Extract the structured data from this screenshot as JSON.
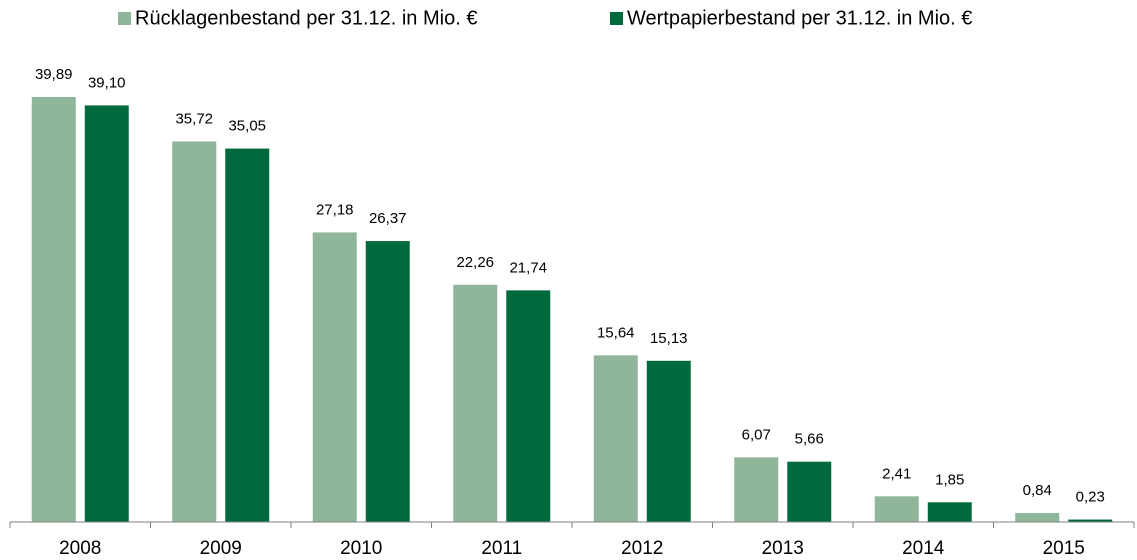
{
  "chart_data": {
    "type": "bar",
    "categories": [
      "2008",
      "2009",
      "2010",
      "2011",
      "2012",
      "2013",
      "2014",
      "2015"
    ],
    "series": [
      {
        "name": "Rücklagenbestand per 31.12. in Mio. €",
        "color": "#8fb59a",
        "values": [
          39.89,
          35.72,
          27.18,
          22.26,
          15.64,
          6.07,
          2.41,
          0.84
        ],
        "value_labels": [
          "39,89",
          "35,72",
          "27,18",
          "22,26",
          "15,64",
          "6,07",
          "2,41",
          "0,84"
        ]
      },
      {
        "name": "Wertpapierbestand per 31.12. in Mio. €",
        "color": "#006a3d",
        "values": [
          39.1,
          35.05,
          26.37,
          21.74,
          15.13,
          5.66,
          1.85,
          0.23
        ],
        "value_labels": [
          "39,10",
          "35,05",
          "26,37",
          "21,74",
          "15,13",
          "5,66",
          "1,85",
          "0,23"
        ]
      }
    ],
    "legend": "top"
  }
}
